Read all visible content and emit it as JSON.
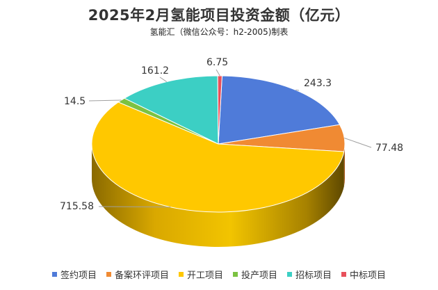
{
  "chart_data": {
    "type": "pie",
    "title": "2025年2月氢能项目投资金额（亿元）",
    "subtitle": "氢能汇（微信公众号：h2-2005)制表",
    "slices": [
      {
        "name": "签约项目",
        "value": 243.3,
        "label": "243.3",
        "color": "#4F7BD9"
      },
      {
        "name": "备案环评项目",
        "value": 77.48,
        "label": "77.48",
        "color": "#F08A33"
      },
      {
        "name": "开工项目",
        "value": 715.58,
        "label": "715.58",
        "color": "#FFC800"
      },
      {
        "name": "投产项目",
        "value": 14.5,
        "label": "14.5",
        "color": "#7CC242"
      },
      {
        "name": "招标项目",
        "value": 161.2,
        "label": "161.2",
        "color": "#3CCFC4"
      },
      {
        "name": "中标项目",
        "value": 6.75,
        "label": "6.75",
        "color": "#E8505B"
      }
    ],
    "legend_position": "bottom"
  }
}
